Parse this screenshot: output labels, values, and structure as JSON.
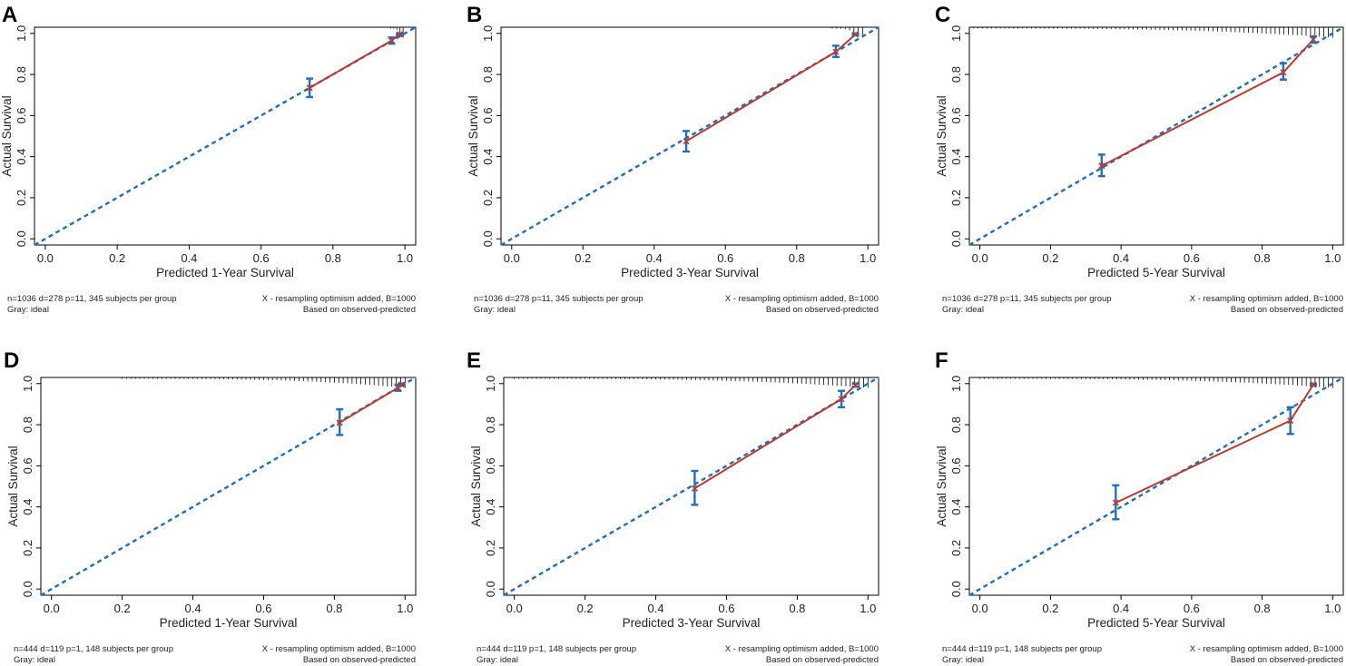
{
  "colors": {
    "ideal": "#1f6fbf",
    "apparent": "#c0392b",
    "errorbar": "#1f6fbf",
    "marker": "#c0392b",
    "frame": "#000000",
    "rug": "#000000"
  },
  "chart_data": [
    {
      "type": "line",
      "panel": "A",
      "xlabel": "Predicted 1-Year Survival",
      "ylabel": "Actual Survival",
      "xlim": [
        -0.03,
        1.03
      ],
      "ylim": [
        -0.03,
        1.03
      ],
      "xticks": [
        "0.0",
        "0.2",
        "0.4",
        "0.6",
        "0.8",
        "1.0"
      ],
      "yticks": [
        "0.0",
        "0.2",
        "0.4",
        "0.6",
        "0.8",
        "1.0"
      ],
      "ideal_line": [
        [
          -0.03,
          -0.03
        ],
        [
          1.03,
          1.03
        ]
      ],
      "points": [
        {
          "x": 0.735,
          "y": 0.735,
          "lo": 0.69,
          "hi": 0.78
        },
        {
          "x": 0.963,
          "y": 0.965,
          "lo": 0.95,
          "hi": 0.98
        },
        {
          "x": 0.985,
          "y": 0.995,
          "lo": 0.99,
          "hi": 1.0
        }
      ],
      "rug_range": [
        0.96,
        0.995
      ],
      "note_left_1": "n=1036 d=278 p=11, 345 subjects per group",
      "note_left_2": "Gray: ideal",
      "note_right_1": "X - resampling optimism added, B=1000",
      "note_right_2": "Based on observed-predicted"
    },
    {
      "type": "line",
      "panel": "B",
      "xlabel": "Predicted 3-Year Survival",
      "ylabel": "Actual Survival",
      "xlim": [
        -0.03,
        1.03
      ],
      "ylim": [
        -0.03,
        1.03
      ],
      "xticks": [
        "0.0",
        "0.2",
        "0.4",
        "0.6",
        "0.8",
        "1.0"
      ],
      "yticks": [
        "0.0",
        "0.2",
        "0.4",
        "0.6",
        "0.8",
        "1.0"
      ],
      "ideal_line": [
        [
          -0.03,
          -0.03
        ],
        [
          1.03,
          1.03
        ]
      ],
      "points": [
        {
          "x": 0.49,
          "y": 0.475,
          "lo": 0.425,
          "hi": 0.525
        },
        {
          "x": 0.91,
          "y": 0.91,
          "lo": 0.885,
          "hi": 0.94
        },
        {
          "x": 0.965,
          "y": 0.995,
          "lo": 0.99,
          "hi": 1.0
        }
      ],
      "rug_range": [
        0.9,
        0.985
      ],
      "note_left_1": "n=1036 d=278 p=11, 345 subjects per group",
      "note_left_2": "Gray: ideal",
      "note_right_1": "X - resampling optimism added, B=1000",
      "note_right_2": "Based on observed-predicted"
    },
    {
      "type": "line",
      "panel": "C",
      "xlabel": "Predicted 5-Year Survival",
      "ylabel": "Actual Survival",
      "xlim": [
        -0.03,
        1.03
      ],
      "ylim": [
        -0.03,
        1.03
      ],
      "xticks": [
        "0.0",
        "0.2",
        "0.4",
        "0.6",
        "0.8",
        "1.0"
      ],
      "yticks": [
        "0.0",
        "0.2",
        "0.4",
        "0.6",
        "0.8",
        "1.0"
      ],
      "ideal_line": [
        [
          -0.03,
          -0.03
        ],
        [
          1.03,
          1.03
        ]
      ],
      "points": [
        {
          "x": 0.345,
          "y": 0.355,
          "lo": 0.305,
          "hi": 0.41
        },
        {
          "x": 0.86,
          "y": 0.81,
          "lo": 0.775,
          "hi": 0.855
        },
        {
          "x": 0.945,
          "y": 0.97,
          "lo": 0.955,
          "hi": 0.985
        }
      ],
      "rug_range": [
        -0.03,
        1.0
      ],
      "note_left_1": "n=1036 d=278 p=11, 345 subjects per group",
      "note_left_2": "Gray: ideal",
      "note_right_1": "X - resampling optimism added, B=1000",
      "note_right_2": "Based on observed-predicted"
    },
    {
      "type": "line",
      "panel": "D",
      "xlabel": "Predicted 1-Year Survival",
      "ylabel": "Actual Survival",
      "xlim": [
        -0.03,
        1.03
      ],
      "ylim": [
        -0.03,
        1.03
      ],
      "xticks": [
        "0.0",
        "0.2",
        "0.4",
        "0.6",
        "0.8",
        "1.0"
      ],
      "yticks": [
        "0.0",
        "0.2",
        "0.4",
        "0.6",
        "0.8",
        "1.0"
      ],
      "ideal_line": [
        [
          -0.03,
          -0.03
        ],
        [
          1.03,
          1.03
        ]
      ],
      "points": [
        {
          "x": 0.815,
          "y": 0.81,
          "lo": 0.75,
          "hi": 0.875
        },
        {
          "x": 0.98,
          "y": 0.98,
          "lo": 0.965,
          "hi": 0.995
        },
        {
          "x": 0.99,
          "y": 0.995,
          "lo": 0.99,
          "hi": 1.0
        }
      ],
      "rug_range": [
        0.2,
        1.0
      ],
      "note_left_1": "n=444 d=119 p=1, 148 subjects per group",
      "note_left_2": "Gray: ideal",
      "note_right_1": "X - resampling optimism added, B=1000",
      "note_right_2": "Based on observed-predicted"
    },
    {
      "type": "line",
      "panel": "E",
      "xlabel": "Predicted 3-Year Survival",
      "ylabel": "Actual Survival",
      "xlim": [
        -0.03,
        1.03
      ],
      "ylim": [
        -0.03,
        1.03
      ],
      "xticks": [
        "0.0",
        "0.2",
        "0.4",
        "0.6",
        "0.8",
        "1.0"
      ],
      "yticks": [
        "0.0",
        "0.2",
        "0.4",
        "0.6",
        "0.8",
        "1.0"
      ],
      "ideal_line": [
        [
          -0.03,
          -0.03
        ],
        [
          1.03,
          1.03
        ]
      ],
      "points": [
        {
          "x": 0.51,
          "y": 0.49,
          "lo": 0.41,
          "hi": 0.575
        },
        {
          "x": 0.925,
          "y": 0.925,
          "lo": 0.885,
          "hi": 0.965
        },
        {
          "x": 0.965,
          "y": 0.995,
          "lo": 0.985,
          "hi": 1.0
        }
      ],
      "rug_range": [
        0.0,
        1.0
      ],
      "note_left_1": "n=444 d=119 p=1, 148 subjects per group",
      "note_left_2": "Gray: ideal",
      "note_right_1": "X - resampling optimism added, B=1000",
      "note_right_2": "Based on observed-predicted"
    },
    {
      "type": "line",
      "panel": "F",
      "xlabel": "Predicted 5-Year Survival",
      "ylabel": "Actual Survival",
      "xlim": [
        -0.03,
        1.03
      ],
      "ylim": [
        -0.03,
        1.03
      ],
      "xticks": [
        "0.0",
        "0.2",
        "0.4",
        "0.6",
        "0.8",
        "1.0"
      ],
      "yticks": [
        "0.0",
        "0.2",
        "0.4",
        "0.6",
        "0.8",
        "1.0"
      ],
      "ideal_line": [
        [
          -0.03,
          -0.03
        ],
        [
          1.03,
          1.03
        ]
      ],
      "points": [
        {
          "x": 0.385,
          "y": 0.42,
          "lo": 0.34,
          "hi": 0.505
        },
        {
          "x": 0.88,
          "y": 0.82,
          "lo": 0.755,
          "hi": 0.885
        },
        {
          "x": 0.945,
          "y": 0.995,
          "lo": 0.99,
          "hi": 1.0
        }
      ],
      "rug_range": [
        0.0,
        1.0
      ],
      "note_left_1": "n=444 d=119 p=1, 148 subjects per group",
      "note_left_2": "Gray: ideal",
      "note_right_1": "X - resampling optimism added, B=1000",
      "note_right_2": "Based on observed-predicted"
    }
  ]
}
